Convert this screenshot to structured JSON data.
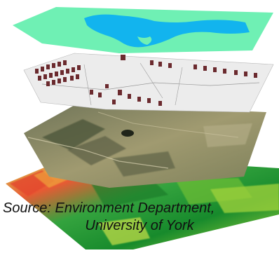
{
  "figure": {
    "layers": [
      {
        "name": "water-layer",
        "colors": {
          "land": "#6ff0b4",
          "water": "#12b4ee"
        }
      },
      {
        "name": "buildings-layer",
        "colors": {
          "ground": "#ececec",
          "building": "#6b2a2e"
        }
      },
      {
        "name": "aerial-imagery-layer",
        "colors": {
          "base": "#8f9063",
          "dark": "#3e4430"
        }
      },
      {
        "name": "elevation-layer",
        "colors": {
          "low": "#1f8a2e",
          "mid": "#8ecb2a",
          "high": "#e8402c"
        }
      }
    ],
    "caption_line1": "Source: Environment Department,",
    "caption_line2": "University of York"
  }
}
